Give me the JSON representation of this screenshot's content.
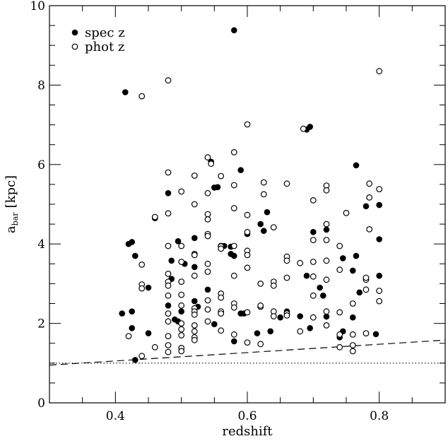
{
  "chart_data": {
    "type": "scatter",
    "title": "",
    "xlabel": "redshift",
    "ylabel": "a_bar [kpc]",
    "ylabel_main": "a",
    "ylabel_sub": "bar",
    "ylabel_unit": "[kpc]",
    "xlim": [
      0.3,
      0.9
    ],
    "ylim": [
      0,
      10
    ],
    "x_major_ticks": [
      0.4,
      0.6,
      0.8
    ],
    "x_tick_labels": [
      "0.4",
      "0.6",
      "0.8"
    ],
    "y_major_ticks": [
      0,
      2,
      4,
      6,
      8,
      10
    ],
    "y_tick_labels": [
      "0",
      "2",
      "4",
      "6",
      "8",
      "10"
    ],
    "grid": false,
    "legend": {
      "placement": "top-left",
      "entries": [
        {
          "label": "spec z",
          "marker": "filled-circle"
        },
        {
          "label": "phot z",
          "marker": "open-circle"
        }
      ]
    },
    "series": [
      {
        "name": "spec z",
        "marker": "filled-circle",
        "points": [
          [
            0.415,
            7.82
          ],
          [
            0.58,
            9.38
          ],
          [
            0.69,
            6.88
          ],
          [
            0.695,
            6.95
          ],
          [
            0.765,
            5.98
          ],
          [
            0.59,
            5.86
          ],
          [
            0.545,
            6.07
          ],
          [
            0.555,
            5.43
          ],
          [
            0.48,
            5.28
          ],
          [
            0.55,
            5.42
          ],
          [
            0.42,
            4.0
          ],
          [
            0.425,
            4.05
          ],
          [
            0.495,
            4.07
          ],
          [
            0.52,
            4.15
          ],
          [
            0.575,
            3.93
          ],
          [
            0.6,
            4.25
          ],
          [
            0.62,
            4.5
          ],
          [
            0.63,
            4.8
          ],
          [
            0.625,
            4.33
          ],
          [
            0.78,
            4.95
          ],
          [
            0.8,
            4.98
          ],
          [
            0.7,
            4.3
          ],
          [
            0.43,
            3.7
          ],
          [
            0.485,
            3.58
          ],
          [
            0.565,
            3.95
          ],
          [
            0.575,
            3.75
          ],
          [
            0.58,
            3.7
          ],
          [
            0.745,
            3.64
          ],
          [
            0.765,
            3.7
          ],
          [
            0.76,
            3.33
          ],
          [
            0.76,
            2.15
          ],
          [
            0.8,
            3.2
          ],
          [
            0.8,
            4.12
          ],
          [
            0.74,
            1.65
          ],
          [
            0.745,
            1.8
          ],
          [
            0.71,
            2.9
          ],
          [
            0.715,
            2.7
          ],
          [
            0.72,
            2.17
          ],
          [
            0.68,
            2.18
          ],
          [
            0.69,
            3.2
          ],
          [
            0.695,
            1.88
          ],
          [
            0.66,
            2.3
          ],
          [
            0.65,
            2.15
          ],
          [
            0.635,
            1.8
          ],
          [
            0.615,
            1.75
          ],
          [
            0.595,
            2.25
          ],
          [
            0.59,
            2.25
          ],
          [
            0.58,
            1.55
          ],
          [
            0.55,
            1.98
          ],
          [
            0.54,
            2.85
          ],
          [
            0.525,
            2.42
          ],
          [
            0.52,
            2.56
          ],
          [
            0.52,
            3.42
          ],
          [
            0.505,
            3.5
          ],
          [
            0.485,
            3.12
          ],
          [
            0.48,
            2.45
          ],
          [
            0.49,
            2.1
          ],
          [
            0.495,
            2.05
          ],
          [
            0.5,
            2.3
          ],
          [
            0.45,
            2.9
          ],
          [
            0.45,
            1.75
          ],
          [
            0.425,
            2.3
          ],
          [
            0.41,
            2.25
          ],
          [
            0.425,
            1.88
          ],
          [
            0.43,
            1.08
          ],
          [
            0.77,
            2.78
          ],
          [
            0.795,
            1.73
          ],
          [
            0.46,
            4.65
          ],
          [
            0.72,
            4.36
          ]
        ]
      },
      {
        "name": "phot z",
        "marker": "open-circle",
        "points": [
          [
            0.48,
            8.12
          ],
          [
            0.44,
            7.72
          ],
          [
            0.8,
            8.35
          ],
          [
            0.6,
            7.01
          ],
          [
            0.685,
            6.9
          ],
          [
            0.58,
            6.31
          ],
          [
            0.54,
            6.18
          ],
          [
            0.545,
            6.02
          ],
          [
            0.48,
            5.8
          ],
          [
            0.52,
            5.72
          ],
          [
            0.56,
            5.71
          ],
          [
            0.58,
            5.48
          ],
          [
            0.625,
            5.55
          ],
          [
            0.66,
            5.52
          ],
          [
            0.72,
            5.47
          ],
          [
            0.72,
            5.35
          ],
          [
            0.785,
            5.52
          ],
          [
            0.8,
            5.38
          ],
          [
            0.785,
            5.17
          ],
          [
            0.5,
            5.32
          ],
          [
            0.54,
            5.28
          ],
          [
            0.52,
            5.0
          ],
          [
            0.58,
            4.9
          ],
          [
            0.46,
            4.68
          ],
          [
            0.48,
            4.77
          ],
          [
            0.54,
            4.75
          ],
          [
            0.54,
            4.62
          ],
          [
            0.6,
            4.73
          ],
          [
            0.625,
            5.25
          ],
          [
            0.64,
            4.42
          ],
          [
            0.7,
            5.1
          ],
          [
            0.72,
            4.5
          ],
          [
            0.75,
            4.78
          ],
          [
            0.785,
            4.37
          ],
          [
            0.48,
            3.95
          ],
          [
            0.5,
            3.95
          ],
          [
            0.54,
            4.25
          ],
          [
            0.54,
            4.2
          ],
          [
            0.56,
            3.95
          ],
          [
            0.58,
            3.95
          ],
          [
            0.6,
            4.3
          ],
          [
            0.6,
            3.83
          ],
          [
            0.6,
            3.72
          ],
          [
            0.66,
            3.68
          ],
          [
            0.66,
            3.58
          ],
          [
            0.7,
            4.1
          ],
          [
            0.7,
            3.55
          ],
          [
            0.72,
            3.58
          ],
          [
            0.72,
            4.1
          ],
          [
            0.74,
            3.95
          ],
          [
            0.44,
            3.48
          ],
          [
            0.5,
            3.55
          ],
          [
            0.52,
            3.75
          ],
          [
            0.52,
            3.72
          ],
          [
            0.54,
            3.5
          ],
          [
            0.56,
            3.94
          ],
          [
            0.56,
            3.88
          ],
          [
            0.6,
            3.4
          ],
          [
            0.68,
            3.52
          ],
          [
            0.52,
            3.2
          ],
          [
            0.54,
            3.3
          ],
          [
            0.58,
            3.2
          ],
          [
            0.62,
            3.0
          ],
          [
            0.64,
            3.05
          ],
          [
            0.64,
            2.95
          ],
          [
            0.66,
            3.15
          ],
          [
            0.7,
            3.18
          ],
          [
            0.72,
            3.1
          ],
          [
            0.74,
            3.35
          ],
          [
            0.78,
            3.1
          ],
          [
            0.78,
            3.15
          ],
          [
            0.8,
            2.82
          ],
          [
            0.48,
            3.25
          ],
          [
            0.48,
            3.05
          ],
          [
            0.48,
            2.95
          ],
          [
            0.5,
            3.05
          ],
          [
            0.44,
            2.98
          ],
          [
            0.44,
            2.88
          ],
          [
            0.48,
            2.7
          ],
          [
            0.48,
            2.25
          ],
          [
            0.5,
            2.72
          ],
          [
            0.5,
            2.45
          ],
          [
            0.52,
            2.38
          ],
          [
            0.52,
            2.3
          ],
          [
            0.52,
            2.22
          ],
          [
            0.54,
            2.58
          ],
          [
            0.54,
            2.35
          ],
          [
            0.56,
            2.75
          ],
          [
            0.56,
            2.65
          ],
          [
            0.56,
            2.3
          ],
          [
            0.56,
            2.25
          ],
          [
            0.58,
            2.5
          ],
          [
            0.58,
            2.4
          ],
          [
            0.6,
            2.28
          ],
          [
            0.62,
            2.42
          ],
          [
            0.62,
            2.45
          ],
          [
            0.64,
            2.3
          ],
          [
            0.66,
            2.25
          ],
          [
            0.7,
            2.7
          ],
          [
            0.72,
            2.3
          ],
          [
            0.74,
            2.28
          ],
          [
            0.76,
            2.5
          ],
          [
            0.78,
            2.85
          ],
          [
            0.8,
            2.56
          ],
          [
            0.48,
            2.05
          ],
          [
            0.5,
            2.0
          ],
          [
            0.5,
            1.85
          ],
          [
            0.5,
            1.7
          ],
          [
            0.52,
            1.95
          ],
          [
            0.52,
            1.8
          ],
          [
            0.52,
            1.65
          ],
          [
            0.52,
            1.58
          ],
          [
            0.54,
            2.05
          ],
          [
            0.56,
            1.82
          ],
          [
            0.58,
            1.72
          ],
          [
            0.6,
            1.52
          ],
          [
            0.62,
            1.48
          ],
          [
            0.64,
            2.18
          ],
          [
            0.66,
            2.2
          ],
          [
            0.68,
            1.8
          ],
          [
            0.7,
            2.15
          ],
          [
            0.72,
            1.95
          ],
          [
            0.74,
            1.72
          ],
          [
            0.76,
            1.45
          ],
          [
            0.76,
            1.3
          ],
          [
            0.78,
            1.75
          ],
          [
            0.42,
            1.68
          ],
          [
            0.44,
            1.18
          ],
          [
            0.46,
            1.4
          ],
          [
            0.48,
            1.68
          ],
          [
            0.48,
            1.45
          ],
          [
            0.48,
            1.28
          ],
          [
            0.5,
            1.38
          ],
          [
            0.5,
            1.3
          ],
          [
            0.76,
            1.72
          ],
          [
            0.74,
            1.4
          ]
        ]
      }
    ],
    "reference_lines": [
      {
        "style": "dashed",
        "x": [
          0.3,
          0.9
        ],
        "y": [
          0.95,
          1.58
        ]
      },
      {
        "style": "dotted",
        "x": [
          0.3,
          0.9
        ],
        "y": [
          1.0,
          1.0
        ]
      }
    ]
  }
}
